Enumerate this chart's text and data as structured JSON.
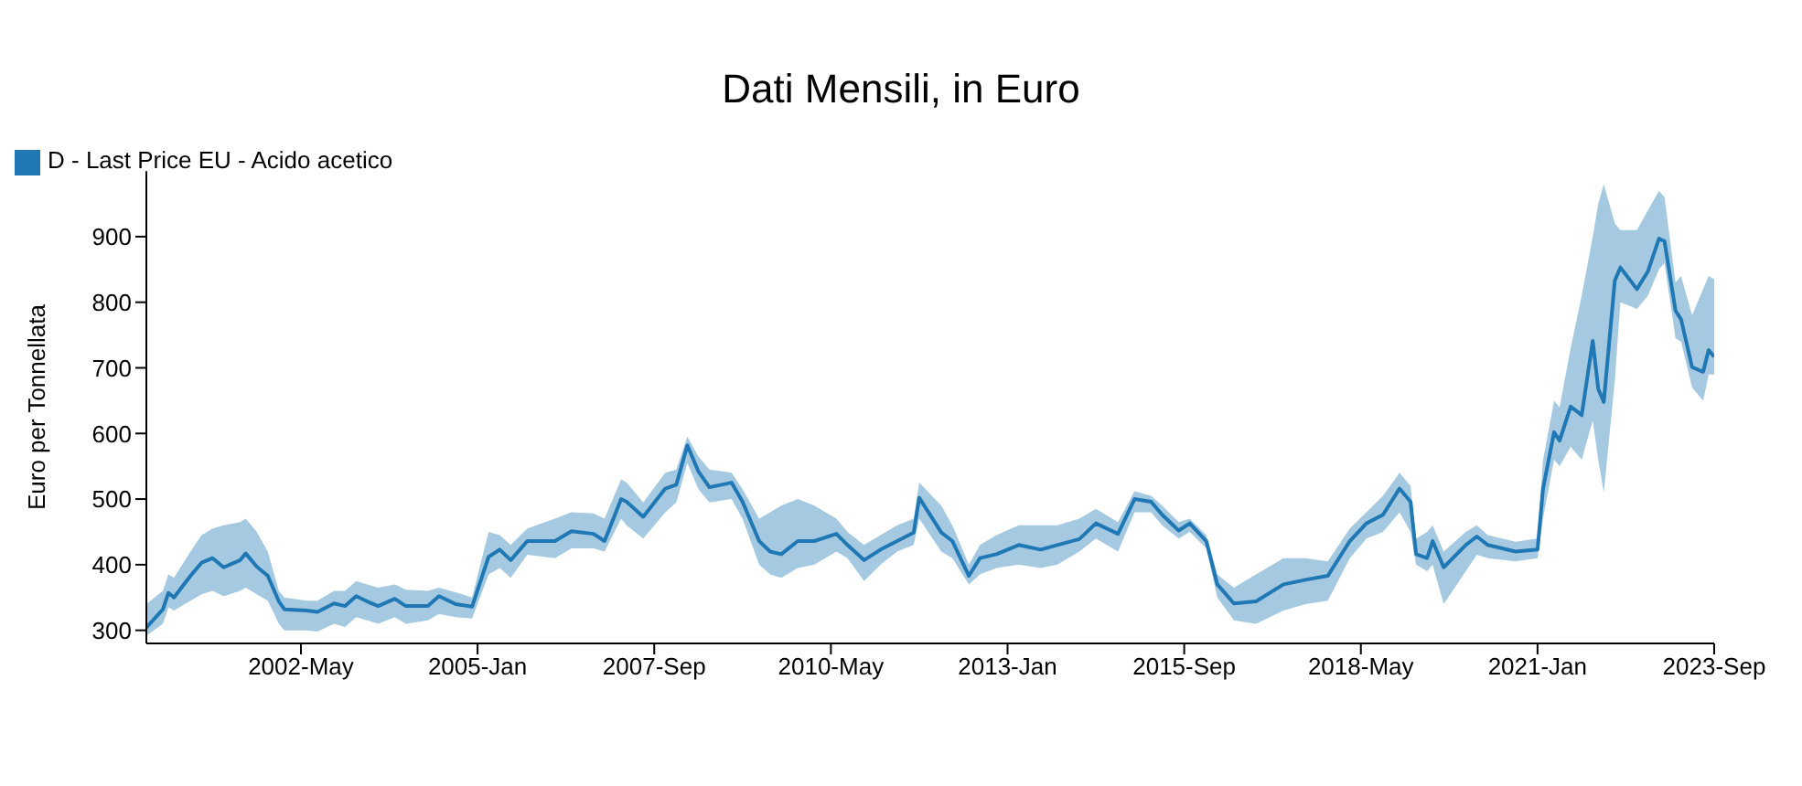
{
  "chart_data": {
    "type": "line",
    "title": "Dati Mensili, in Euro",
    "ylabel": "Euro per Tonnellata",
    "x": [
      "2000-01",
      "2000-04",
      "2000-05",
      "2000-06",
      "2000-09",
      "2000-11",
      "2001-01",
      "2001-03",
      "2001-06",
      "2001-07",
      "2001-09",
      "2001-11",
      "2002-01",
      "2002-02",
      "2002-06",
      "2002-08",
      "2002-11",
      "2003-01",
      "2003-03",
      "2003-05",
      "2003-07",
      "2003-10",
      "2003-12",
      "2004-04",
      "2004-06",
      "2004-09",
      "2004-12",
      "2005-03",
      "2005-05",
      "2005-07",
      "2005-10",
      "2006-03",
      "2006-06",
      "2006-10",
      "2006-12",
      "2007-03",
      "2007-04",
      "2007-07",
      "2007-11",
      "2008-01",
      "2008-03",
      "2008-05",
      "2008-07",
      "2008-11",
      "2009-01",
      "2009-04",
      "2009-06",
      "2009-08",
      "2009-11",
      "2010-02",
      "2010-06",
      "2010-08",
      "2010-11",
      "2011-02",
      "2011-05",
      "2011-08",
      "2011-09",
      "2012-01",
      "2012-03",
      "2012-06",
      "2012-08",
      "2012-11",
      "2013-03",
      "2013-07",
      "2013-10",
      "2014-02",
      "2014-05",
      "2014-09",
      "2014-12",
      "2015-03",
      "2015-05",
      "2015-08",
      "2015-10",
      "2016-01",
      "2016-03",
      "2016-06",
      "2016-10",
      "2017-03",
      "2017-07",
      "2017-11",
      "2018-03",
      "2018-06",
      "2018-09",
      "2018-12",
      "2019-02",
      "2019-03",
      "2019-05",
      "2019-06",
      "2019-08",
      "2019-12",
      "2020-02",
      "2020-04",
      "2020-09",
      "2021-01",
      "2021-02",
      "2021-04",
      "2021-05",
      "2021-07",
      "2021-09",
      "2021-11",
      "2021-12",
      "2022-01",
      "2022-03",
      "2022-04",
      "2022-07",
      "2022-09",
      "2022-11",
      "2022-12",
      "2023-02",
      "2023-03",
      "2023-05",
      "2023-07",
      "2023-08",
      "2023-09"
    ],
    "series": [
      {
        "name": "D - Last Price EU - Acido acetico",
        "color": "#1f77b4",
        "values": [
          304,
          332,
          357,
          350,
          383,
          403,
          410,
          396,
          407,
          417,
          397,
          383,
          344,
          332,
          330,
          328,
          341,
          337,
          352,
          344,
          337,
          348,
          337,
          337,
          352,
          340,
          336,
          412,
          423,
          407,
          436,
          436,
          451,
          447,
          436,
          500,
          496,
          473,
          516,
          522,
          582,
          542,
          518,
          525,
          496,
          436,
          420,
          416,
          436,
          436,
          447,
          430,
          407,
          423,
          436,
          449,
          502,
          449,
          436,
          383,
          410,
          416,
          430,
          423,
          430,
          439,
          463,
          447,
          500,
          496,
          476,
          452,
          463,
          436,
          370,
          341,
          344,
          370,
          377,
          383,
          436,
          463,
          476,
          516,
          496,
          416,
          410,
          436,
          396,
          430,
          443,
          430,
          420,
          423,
          516,
          602,
          589,
          641,
          628,
          741,
          668,
          648,
          833,
          853,
          820,
          847,
          897,
          893,
          787,
          774,
          701,
          694,
          727,
          717
        ],
        "lower": [
          292,
          310,
          335,
          330,
          345,
          355,
          360,
          352,
          360,
          365,
          355,
          345,
          310,
          300,
          300,
          298,
          310,
          305,
          320,
          315,
          310,
          320,
          310,
          315,
          325,
          320,
          318,
          385,
          395,
          380,
          415,
          410,
          425,
          425,
          420,
          470,
          460,
          440,
          480,
          495,
          555,
          515,
          495,
          500,
          470,
          400,
          385,
          380,
          395,
          400,
          420,
          410,
          375,
          400,
          420,
          430,
          470,
          420,
          410,
          370,
          385,
          395,
          400,
          395,
          400,
          420,
          440,
          420,
          480,
          480,
          460,
          440,
          450,
          425,
          350,
          315,
          310,
          330,
          340,
          345,
          410,
          440,
          450,
          480,
          450,
          400,
          390,
          400,
          340,
          390,
          415,
          410,
          405,
          410,
          470,
          560,
          550,
          580,
          560,
          620,
          560,
          510,
          680,
          800,
          790,
          810,
          850,
          860,
          745,
          740,
          670,
          650,
          690,
          690
        ],
        "upper": [
          340,
          360,
          385,
          380,
          420,
          445,
          455,
          460,
          465,
          470,
          450,
          420,
          360,
          350,
          345,
          345,
          360,
          360,
          375,
          370,
          365,
          370,
          362,
          360,
          365,
          358,
          350,
          450,
          445,
          430,
          455,
          470,
          480,
          478,
          470,
          530,
          525,
          495,
          540,
          545,
          595,
          565,
          545,
          540,
          515,
          470,
          480,
          490,
          500,
          490,
          470,
          450,
          430,
          445,
          460,
          470,
          525,
          490,
          460,
          400,
          430,
          445,
          460,
          460,
          460,
          470,
          485,
          465,
          512,
          505,
          490,
          465,
          470,
          445,
          385,
          365,
          385,
          410,
          410,
          405,
          455,
          480,
          505,
          540,
          520,
          440,
          450,
          460,
          420,
          450,
          460,
          445,
          435,
          440,
          560,
          650,
          640,
          730,
          810,
          900,
          950,
          980,
          920,
          910,
          910,
          940,
          970,
          960,
          830,
          840,
          780,
          820,
          840,
          835
        ]
      }
    ],
    "ylim": [
      280,
      1000
    ],
    "yticks": [
      300,
      400,
      500,
      600,
      700,
      800,
      900
    ],
    "xlim": [
      "2000-01",
      "2023-09"
    ],
    "xticks": [
      {
        "value": "2002-05",
        "label": "2002-May"
      },
      {
        "value": "2005-01",
        "label": "2005-Jan"
      },
      {
        "value": "2007-09",
        "label": "2007-Sep"
      },
      {
        "value": "2010-05",
        "label": "2010-May"
      },
      {
        "value": "2013-01",
        "label": "2013-Jan"
      },
      {
        "value": "2015-09",
        "label": "2015-Sep"
      },
      {
        "value": "2018-05",
        "label": "2018-May"
      },
      {
        "value": "2021-01",
        "label": "2021-Jan"
      },
      {
        "value": "2023-09",
        "label": "2023-Sep"
      }
    ],
    "legend": "top left",
    "grid": false,
    "marker": "none",
    "line_style": "solid"
  }
}
